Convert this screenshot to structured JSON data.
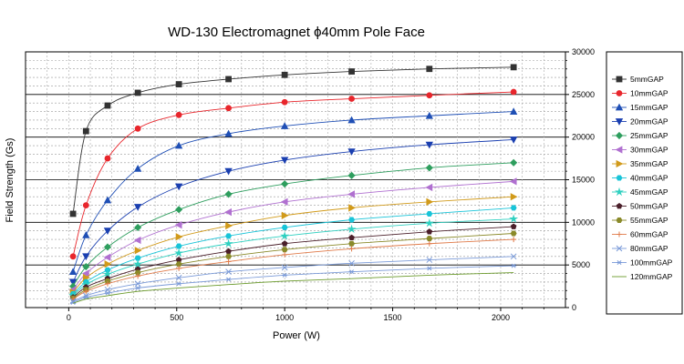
{
  "chart_data": {
    "type": "line",
    "title": "WD-130 Electromagnet ϕ40mm Pole Face",
    "xlabel": "Power (W)",
    "ylabel": "Field Strength (Gs)",
    "xlim": [
      -200,
      2300
    ],
    "ylim": [
      0,
      30000
    ],
    "x_ticks": [
      0,
      500,
      1000,
      1500,
      2000
    ],
    "y_ticks": [
      0,
      5000,
      10000,
      15000,
      20000,
      25000,
      30000
    ],
    "y_axis_side": "right",
    "grid": true,
    "legend_placement": "right",
    "x": [
      20,
      80,
      180,
      320,
      510,
      740,
      1000,
      1310,
      1670,
      2060
    ],
    "series": [
      {
        "name": "5mmGAP",
        "color": "#333333",
        "marker": "square",
        "values": [
          11000,
          20700,
          23700,
          25200,
          26200,
          26800,
          27300,
          27700,
          28000,
          28200
        ]
      },
      {
        "name": "10mmGAP",
        "color": "#e8262c",
        "marker": "circle",
        "values": [
          6000,
          12000,
          17500,
          21000,
          22600,
          23400,
          24100,
          24500,
          24900,
          25300
        ]
      },
      {
        "name": "15mmGAP",
        "color": "#1f4fb5",
        "marker": "triangle-up",
        "values": [
          4200,
          8500,
          12600,
          16300,
          19000,
          20400,
          21300,
          22000,
          22500,
          23000
        ]
      },
      {
        "name": "20mmGAP",
        "color": "#1a3fb0",
        "marker": "triangle-down",
        "values": [
          3000,
          6000,
          9000,
          11800,
          14200,
          16000,
          17300,
          18300,
          19100,
          19700
        ]
      },
      {
        "name": "25mmGAP",
        "color": "#2e9e5e",
        "marker": "diamond",
        "values": [
          2500,
          4800,
          7100,
          9400,
          11500,
          13300,
          14500,
          15500,
          16400,
          17000
        ]
      },
      {
        "name": "30mmGAP",
        "color": "#b070d0",
        "marker": "triangle-left",
        "values": [
          2100,
          4000,
          5900,
          7900,
          9700,
          11200,
          12400,
          13300,
          14100,
          14800
        ]
      },
      {
        "name": "35mmGAP",
        "color": "#d19a1a",
        "marker": "triangle-right",
        "values": [
          1800,
          3500,
          5100,
          6700,
          8300,
          9600,
          10800,
          11700,
          12400,
          13000
        ]
      },
      {
        "name": "40mmGAP",
        "color": "#19c4d8",
        "marker": "hexagon",
        "values": [
          1600,
          3000,
          4400,
          5800,
          7200,
          8400,
          9400,
          10300,
          11000,
          11700
        ]
      },
      {
        "name": "45mmGAP",
        "color": "#2ed0c0",
        "marker": "star",
        "values": [
          1400,
          2700,
          3900,
          5100,
          6400,
          7500,
          8400,
          9200,
          9900,
          10400
        ]
      },
      {
        "name": "50mmGAP",
        "color": "#4a1f2a",
        "marker": "pentagon",
        "values": [
          1200,
          2400,
          3400,
          4500,
          5600,
          6600,
          7500,
          8200,
          8900,
          9500
        ]
      },
      {
        "name": "55mmGAP",
        "color": "#8a8a2a",
        "marker": "hexagon",
        "values": [
          1100,
          2100,
          3100,
          4100,
          5100,
          6000,
          6800,
          7500,
          8100,
          8700
        ]
      },
      {
        "name": "60mmGAP",
        "color": "#e07b4a",
        "marker": "plus",
        "values": [
          1000,
          1900,
          2800,
          3700,
          4600,
          5400,
          6200,
          6900,
          7500,
          8000
        ]
      },
      {
        "name": "80mmGAP",
        "color": "#7a9ad8",
        "marker": "cross",
        "values": [
          750,
          1400,
          2100,
          2800,
          3500,
          4200,
          4700,
          5200,
          5600,
          6000
        ]
      },
      {
        "name": "100mmGAP",
        "color": "#7a9ad8",
        "marker": "asterisk",
        "values": [
          600,
          1200,
          1700,
          2300,
          2800,
          3300,
          3800,
          4200,
          4600,
          4900
        ]
      },
      {
        "name": "120mmGAP",
        "color": "#6a9a2a",
        "marker": "none",
        "values": [
          500,
          1000,
          1400,
          1900,
          2300,
          2700,
          3100,
          3400,
          3800,
          4100
        ]
      }
    ]
  }
}
